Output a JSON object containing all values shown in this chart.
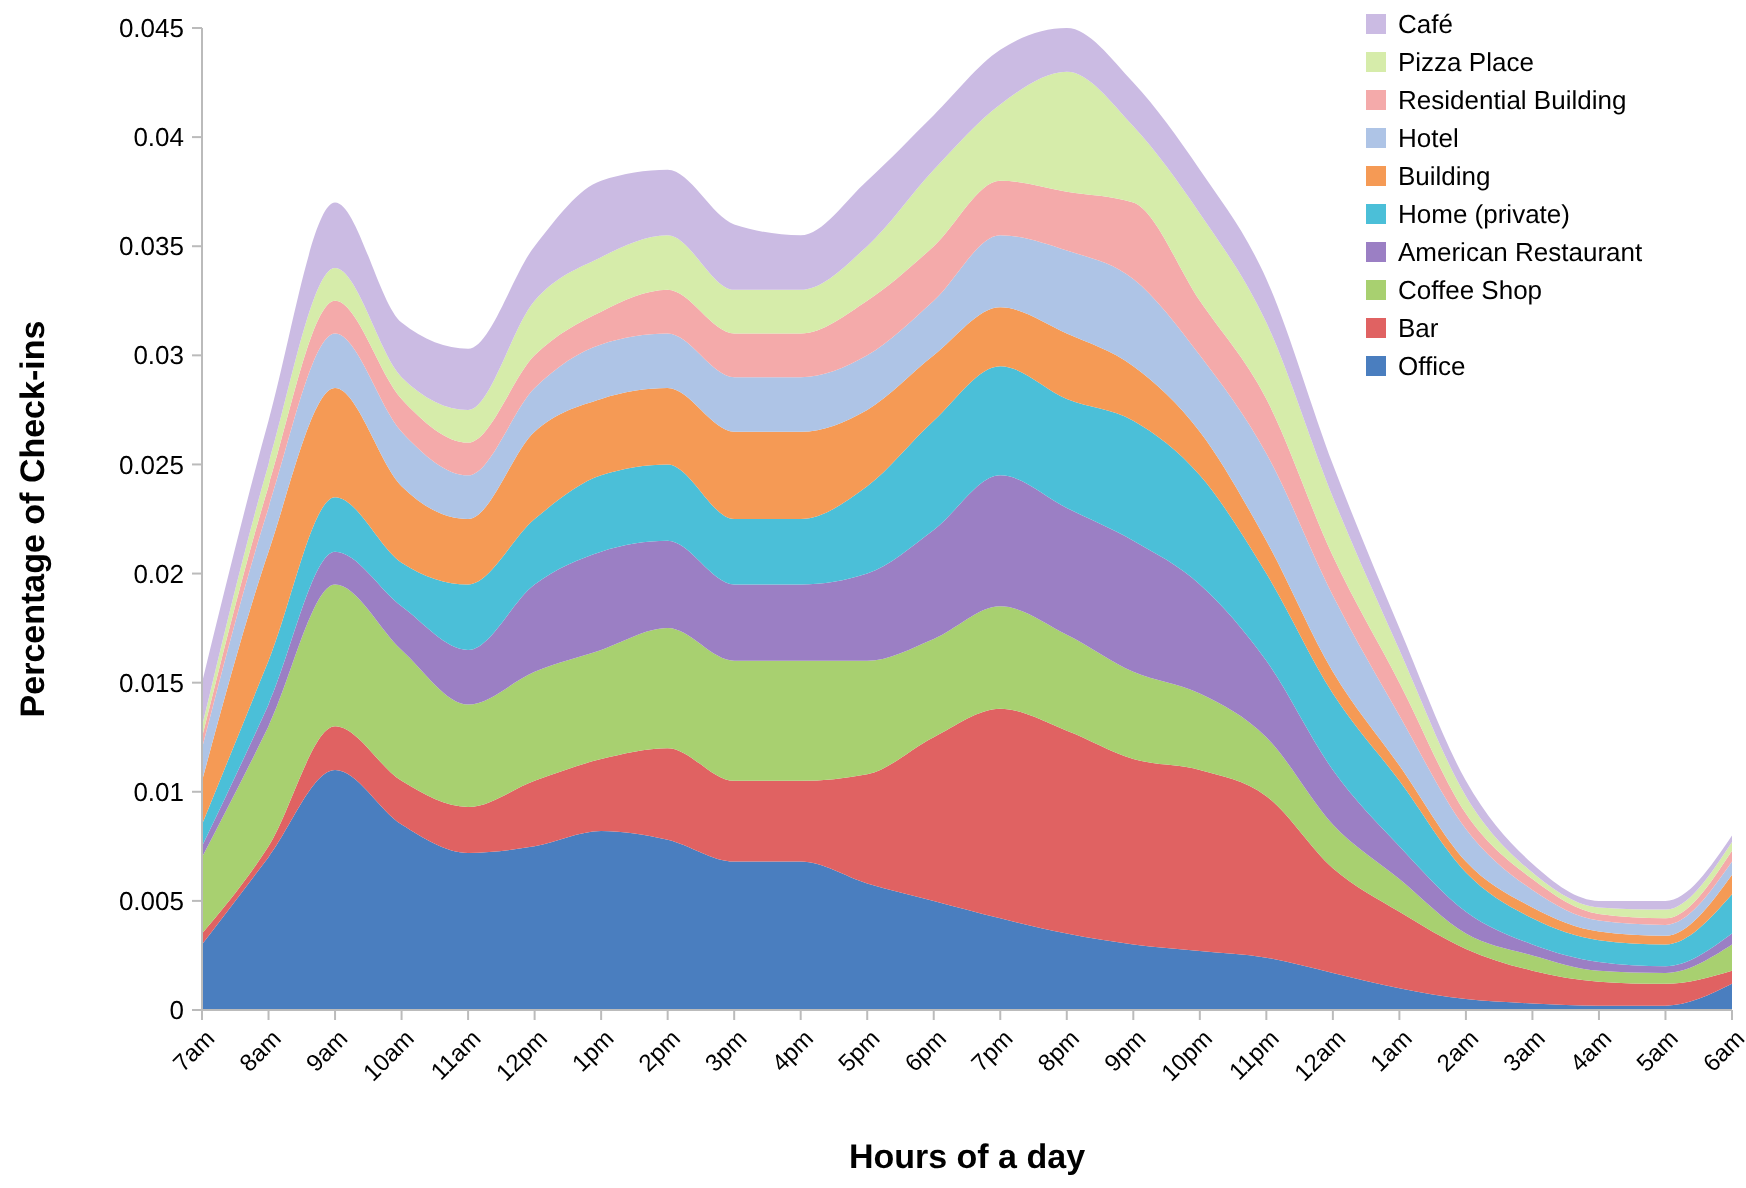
{
  "chart_data": {
    "type": "area",
    "stacked": true,
    "xlabel": "Hours of  a day",
    "ylabel": "Percentage of Check-ins",
    "categories": [
      "7am",
      "8am",
      "9am",
      "10am",
      "11am",
      "12pm",
      "1pm",
      "2pm",
      "3pm",
      "4pm",
      "5pm",
      "6pm",
      "7pm",
      "8pm",
      "9pm",
      "10pm",
      "11pm",
      "12am",
      "1am",
      "2am",
      "3am",
      "4am",
      "5am",
      "6am"
    ],
    "ylim": [
      0,
      0.045
    ],
    "yticks": [
      0,
      0.005,
      0.01,
      0.015,
      0.02,
      0.025,
      0.03,
      0.035,
      0.04,
      0.045
    ],
    "grid": false,
    "legend": "top right",
    "series": [
      {
        "name": "Office",
        "color": "#4a7ebf",
        "values": [
          0.003,
          0.007,
          0.011,
          0.0085,
          0.0072,
          0.0075,
          0.0082,
          0.0078,
          0.0068,
          0.0068,
          0.0058,
          0.005,
          0.0042,
          0.0035,
          0.003,
          0.0027,
          0.0024,
          0.0017,
          0.001,
          0.0005,
          0.0003,
          0.0002,
          0.0002,
          0.0012
        ]
      },
      {
        "name": "Bar",
        "color": "#e06262",
        "values": [
          0.0005,
          0.0005,
          0.002,
          0.002,
          0.0021,
          0.003,
          0.0033,
          0.0042,
          0.0037,
          0.0037,
          0.005,
          0.0075,
          0.0096,
          0.0093,
          0.0085,
          0.0083,
          0.0074,
          0.0048,
          0.0035,
          0.0023,
          0.0015,
          0.0011,
          0.001,
          0.0006
        ]
      },
      {
        "name": "Coffee Shop",
        "color": "#a8d070",
        "values": [
          0.0035,
          0.0055,
          0.0065,
          0.006,
          0.0047,
          0.005,
          0.005,
          0.0055,
          0.0055,
          0.0055,
          0.0052,
          0.0045,
          0.0047,
          0.0044,
          0.004,
          0.0035,
          0.0027,
          0.002,
          0.0015,
          0.0007,
          0.0007,
          0.0005,
          0.0005,
          0.0012
        ]
      },
      {
        "name": "American Restaurant",
        "color": "#9b7fc4",
        "values": [
          0.0005,
          0.001,
          0.0015,
          0.002,
          0.0025,
          0.004,
          0.0045,
          0.004,
          0.0035,
          0.0035,
          0.004,
          0.005,
          0.006,
          0.0058,
          0.006,
          0.005,
          0.0035,
          0.0025,
          0.0015,
          0.001,
          0.0005,
          0.0004,
          0.0003,
          0.0005
        ]
      },
      {
        "name": "Home (private)",
        "color": "#4bbfd8",
        "values": [
          0.001,
          0.002,
          0.0025,
          0.002,
          0.003,
          0.003,
          0.0035,
          0.0035,
          0.003,
          0.003,
          0.004,
          0.005,
          0.005,
          0.005,
          0.0055,
          0.005,
          0.004,
          0.0035,
          0.003,
          0.0018,
          0.0012,
          0.001,
          0.001,
          0.0018
        ]
      },
      {
        "name": "Building",
        "color": "#f59a55",
        "values": [
          0.002,
          0.005,
          0.005,
          0.0035,
          0.003,
          0.004,
          0.0035,
          0.0035,
          0.004,
          0.004,
          0.0035,
          0.003,
          0.0027,
          0.003,
          0.0025,
          0.002,
          0.0015,
          0.001,
          0.0007,
          0.0005,
          0.0005,
          0.0004,
          0.0004,
          0.0009
        ]
      },
      {
        "name": "Hotel",
        "color": "#aec4e6",
        "values": [
          0.0015,
          0.002,
          0.0025,
          0.0025,
          0.002,
          0.002,
          0.0025,
          0.0025,
          0.0025,
          0.0025,
          0.0025,
          0.0025,
          0.0033,
          0.0038,
          0.004,
          0.0035,
          0.004,
          0.0035,
          0.0023,
          0.0015,
          0.0008,
          0.0005,
          0.0005,
          0.0006
        ]
      },
      {
        "name": "Residential Building",
        "color": "#f4aaaa",
        "values": [
          0.0005,
          0.001,
          0.0015,
          0.0015,
          0.0015,
          0.0015,
          0.0015,
          0.002,
          0.002,
          0.002,
          0.0025,
          0.0025,
          0.0025,
          0.0027,
          0.0035,
          0.0025,
          0.0025,
          0.0018,
          0.0015,
          0.0007,
          0.0005,
          0.0003,
          0.0003,
          0.0005
        ]
      },
      {
        "name": "Pizza Place",
        "color": "#d6ecaa",
        "values": [
          0.0005,
          0.001,
          0.0015,
          0.001,
          0.0015,
          0.0025,
          0.0025,
          0.0025,
          0.002,
          0.002,
          0.0025,
          0.0035,
          0.0035,
          0.0055,
          0.0035,
          0.004,
          0.0035,
          0.0027,
          0.0015,
          0.0008,
          0.0003,
          0.0003,
          0.0004,
          0.0004
        ]
      },
      {
        "name": "Café",
        "color": "#cbbbe3",
        "values": [
          0.002,
          0.002,
          0.003,
          0.0025,
          0.0028,
          0.0025,
          0.0035,
          0.003,
          0.003,
          0.0025,
          0.003,
          0.0025,
          0.0025,
          0.002,
          0.002,
          0.002,
          0.002,
          0.0015,
          0.001,
          0.0007,
          0.0004,
          0.0003,
          0.0004,
          0.0003
        ]
      }
    ]
  }
}
